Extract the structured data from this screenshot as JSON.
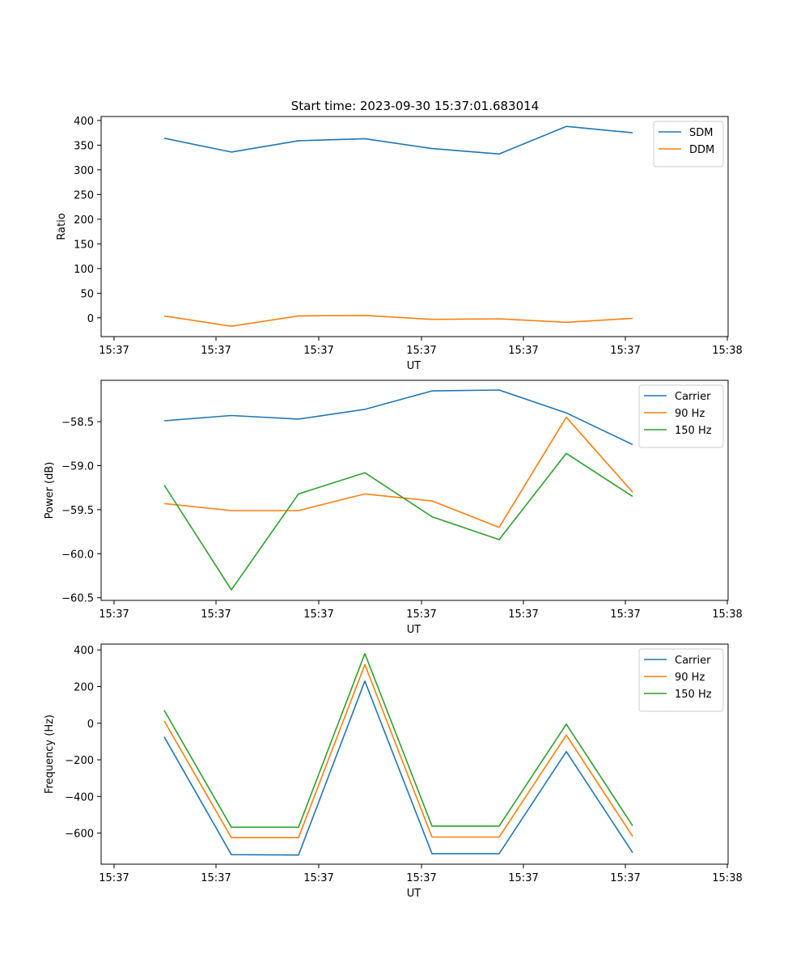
{
  "title": "Start time: 2023-09-30 15:37:01.683014",
  "chart_data": [
    {
      "type": "line",
      "xlabel": "UT",
      "ylabel": "Ratio",
      "x_tick_labels": [
        "15:37",
        "15:37",
        "15:37",
        "15:37",
        "15:37",
        "15:37",
        "15:38"
      ],
      "xlim": [
        0,
        6.12
      ],
      "x": [
        0.48,
        1.13,
        1.78,
        2.45,
        3.1,
        3.75,
        4.4,
        5.05
      ],
      "ylim": [
        -38,
        408
      ],
      "y_ticks": [
        0,
        50,
        100,
        150,
        200,
        250,
        300,
        350,
        400
      ],
      "y_tick_labels": [
        "0",
        "50",
        "100",
        "150",
        "200",
        "250",
        "300",
        "350",
        "400"
      ],
      "legend_position": "top-right",
      "series": [
        {
          "name": "SDM",
          "color": "#1f77b4",
          "values": [
            364,
            336,
            359,
            363,
            343,
            332,
            388,
            375
          ]
        },
        {
          "name": "DDM",
          "color": "#ff7f0e",
          "values": [
            4,
            -17,
            4,
            5,
            -3,
            -2,
            -9,
            -1
          ]
        }
      ]
    },
    {
      "type": "line",
      "xlabel": "UT",
      "ylabel": "Power (dB)",
      "x_tick_labels": [
        "15:37",
        "15:37",
        "15:37",
        "15:37",
        "15:37",
        "15:37",
        "15:38"
      ],
      "xlim": [
        0,
        6.12
      ],
      "x": [
        0.48,
        1.13,
        1.78,
        2.45,
        3.1,
        3.75,
        4.4,
        5.05
      ],
      "ylim": [
        -60.53,
        -58.03
      ],
      "y_ticks": [
        -60.5,
        -60.0,
        -59.5,
        -59.0,
        -58.5
      ],
      "y_tick_labels": [
        "−60.5",
        "−60.0",
        "−59.5",
        "−59.0",
        "−58.5"
      ],
      "legend_position": "top-right",
      "series": [
        {
          "name": "Carrier",
          "color": "#1f77b4",
          "values": [
            -58.49,
            -58.43,
            -58.47,
            -58.36,
            -58.15,
            -58.14,
            -58.4,
            -58.76
          ]
        },
        {
          "name": "90 Hz",
          "color": "#ff7f0e",
          "values": [
            -59.43,
            -59.51,
            -59.51,
            -59.32,
            -59.4,
            -59.7,
            -58.45,
            -59.3
          ]
        },
        {
          "name": "150 Hz",
          "color": "#2ca02c",
          "values": [
            -59.22,
            -60.41,
            -59.32,
            -59.08,
            -59.58,
            -59.84,
            -58.86,
            -59.35
          ]
        }
      ]
    },
    {
      "type": "line",
      "xlabel": "UT",
      "ylabel": "Frequency (Hz)",
      "x_tick_labels": [
        "15:37",
        "15:37",
        "15:37",
        "15:37",
        "15:37",
        "15:37",
        "15:38"
      ],
      "xlim": [
        0,
        6.12
      ],
      "x": [
        0.48,
        1.13,
        1.78,
        2.45,
        3.1,
        3.75,
        4.4,
        5.05
      ],
      "ylim": [
        -770,
        432
      ],
      "y_ticks": [
        -600,
        -400,
        -200,
        0,
        200,
        400
      ],
      "y_tick_labels": [
        "−600",
        "−400",
        "−200",
        "0",
        "200",
        "400"
      ],
      "legend_position": "top-right",
      "series": [
        {
          "name": "Carrier",
          "color": "#1f77b4",
          "values": [
            -75,
            -718,
            -720,
            230,
            -713,
            -713,
            -155,
            -707
          ]
        },
        {
          "name": "90 Hz",
          "color": "#ff7f0e",
          "values": [
            12,
            -625,
            -625,
            320,
            -622,
            -622,
            -65,
            -618
          ]
        },
        {
          "name": "150 Hz",
          "color": "#2ca02c",
          "values": [
            70,
            -568,
            -568,
            380,
            -562,
            -562,
            -5,
            -560
          ]
        }
      ]
    }
  ]
}
